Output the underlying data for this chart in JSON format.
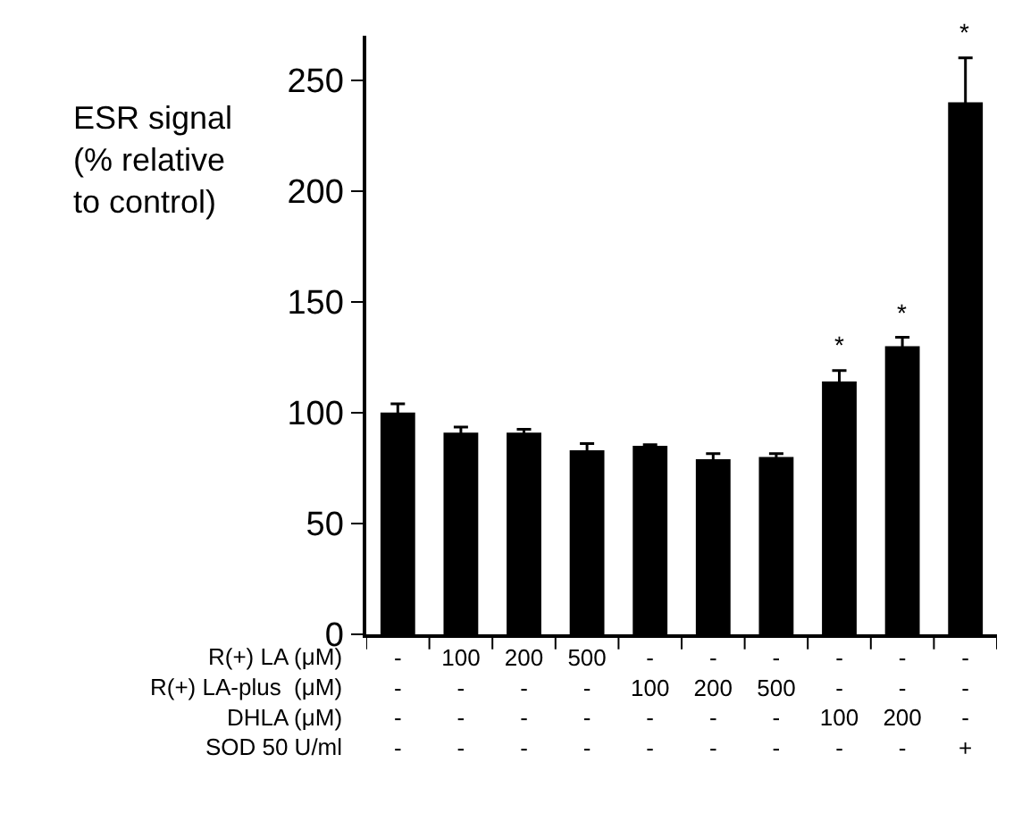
{
  "chart_data": {
    "type": "bar",
    "categories": [
      "-\n-\n-\n-",
      "100\n-\n-\n-",
      "200\n-\n-\n-",
      "500\n-\n-\n-",
      "-\n100\n-\n-",
      "-\n200\n-\n-",
      "-\n500\n-\n-",
      "-\n-\n100\n-",
      "-\n-\n200\n-",
      "-\n-\n-\n+"
    ],
    "series": [
      {
        "color": "#000000",
        "values": [
          100,
          91,
          91,
          83,
          85,
          79,
          80,
          114,
          130,
          240
        ],
        "errors": [
          4,
          2.5,
          1.5,
          3,
          0.5,
          2.5,
          1.5,
          5,
          4,
          20
        ],
        "value_labels": [
          null,
          null,
          null,
          null,
          null,
          null,
          null,
          "*",
          "*",
          "*"
        ]
      }
    ],
    "ylabel": "ESR signal\n(% relative\nto control)",
    "annotations": [
      "R(+) LA (μM)\nR(+) LA-plus  (μM)\nDHLA (μM)\nSOD 50 U/ml"
    ],
    "ylim": [
      0,
      270
    ],
    "yticks": [
      0,
      50,
      100,
      150,
      200,
      250
    ]
  }
}
